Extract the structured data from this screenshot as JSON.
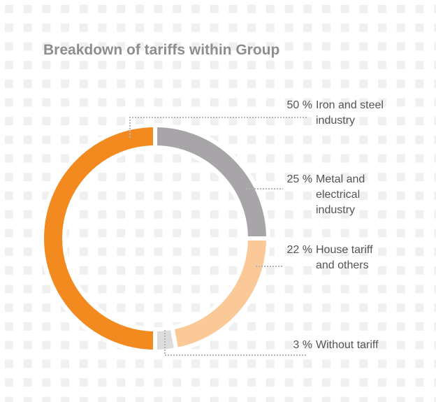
{
  "chart_data": {
    "type": "donut",
    "title": "Breakdown of tariffs within Group",
    "categories": [
      "Iron and steel industry",
      "Metal and electrical industry",
      "House tariff and others",
      "Without tariff"
    ],
    "values": [
      50,
      25,
      22,
      3
    ],
    "value_labels": [
      "50 %",
      "25 %",
      "22 %",
      "3 %"
    ],
    "colors": [
      "#f28a1f",
      "#a7a5a8",
      "#fbc998",
      "#dcdcdc"
    ]
  }
}
